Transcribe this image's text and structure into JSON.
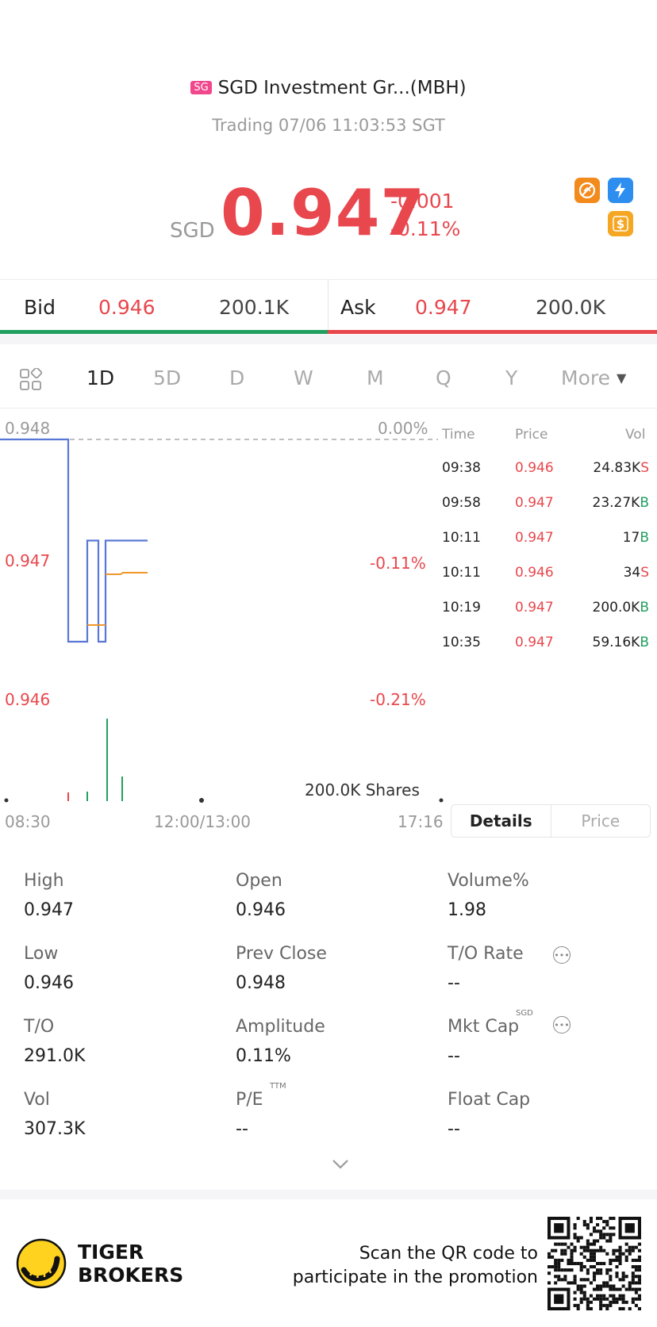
{
  "header": {
    "badge": "SG",
    "title": "SGD Investment Gr...(MBH)",
    "status": "Trading 07/06 11:03:53 SGT"
  },
  "quote": {
    "currency": "SGD",
    "price": "0.947",
    "change": "-0.001",
    "change_pct": "-0.11%"
  },
  "icons": [
    "no-short-icon",
    "lightning-level1-icon",
    "dollar-icon"
  ],
  "bid": {
    "label": "Bid",
    "price": "0.946",
    "size": "200.1K"
  },
  "ask": {
    "label": "Ask",
    "price": "0.947",
    "size": "200.0K"
  },
  "tabs": [
    "1D",
    "5D",
    "D",
    "W",
    "M",
    "Q",
    "Y",
    "More"
  ],
  "active_tab": "1D",
  "chart": {
    "y_top": "0.948",
    "y_mid": "0.947",
    "y_bot": "0.946",
    "pct_top": "0.00%",
    "pct_mid": "-0.11%",
    "pct_bot": "-0.21%",
    "x_start": "08:30",
    "x_mid": "12:00/13:00",
    "x_end": "17:16",
    "volume_label": "200.0K Shares"
  },
  "chart_data": {
    "type": "line",
    "series": [
      {
        "values": [
          0.948,
          0.948,
          0.946,
          0.946,
          0.947,
          0.947,
          0.946,
          0.946,
          0.947,
          0.947
        ]
      }
    ],
    "ylim": [
      0.946,
      0.948
    ],
    "xlabel": "",
    "ylabel": ""
  },
  "ticks": {
    "headers": {
      "time": "Time",
      "price": "Price",
      "vol": "Vol"
    },
    "rows": [
      {
        "time": "09:38",
        "price": "0.946",
        "vol": "24.83K",
        "side": "S"
      },
      {
        "time": "09:58",
        "price": "0.947",
        "vol": "23.27K",
        "side": "B"
      },
      {
        "time": "10:11",
        "price": "0.947",
        "vol": "17",
        "side": "B"
      },
      {
        "time": "10:11",
        "price": "0.946",
        "vol": "34",
        "side": "S"
      },
      {
        "time": "10:19",
        "price": "0.947",
        "vol": "200.0K",
        "side": "B"
      },
      {
        "time": "10:35",
        "price": "0.947",
        "vol": "59.16K",
        "side": "B"
      }
    ]
  },
  "segment": {
    "details": "Details",
    "price": "Price"
  },
  "stats": {
    "high": {
      "label": "High",
      "value": "0.947"
    },
    "open": {
      "label": "Open",
      "value": "0.946"
    },
    "volume_pct": {
      "label": "Volume%",
      "value": "1.98"
    },
    "low": {
      "label": "Low",
      "value": "0.946"
    },
    "prev_close": {
      "label": "Prev Close",
      "value": "0.948"
    },
    "to_rate": {
      "label": "T/O Rate",
      "value": "--"
    },
    "to": {
      "label": "T/O",
      "value": "291.0K"
    },
    "amplitude": {
      "label": "Amplitude",
      "value": "0.11%"
    },
    "mkt_cap": {
      "label": "Mkt Cap",
      "sup": "SGD",
      "value": "--"
    },
    "vol": {
      "label": "Vol",
      "value": "307.3K"
    },
    "pe": {
      "label": "P/E",
      "sup": "TTM",
      "value": "--"
    },
    "float_cap": {
      "label": "Float Cap",
      "value": "--"
    }
  },
  "promo": {
    "brand_line1": "TIGER",
    "brand_line2": "BROKERS",
    "text_line1": "Scan the QR code to",
    "text_line2": "participate in the promotion"
  },
  "colors": {
    "red": "#e8474d",
    "green": "#22a060",
    "line_blue": "#5a77d6",
    "avg_orange": "#f0962b"
  }
}
